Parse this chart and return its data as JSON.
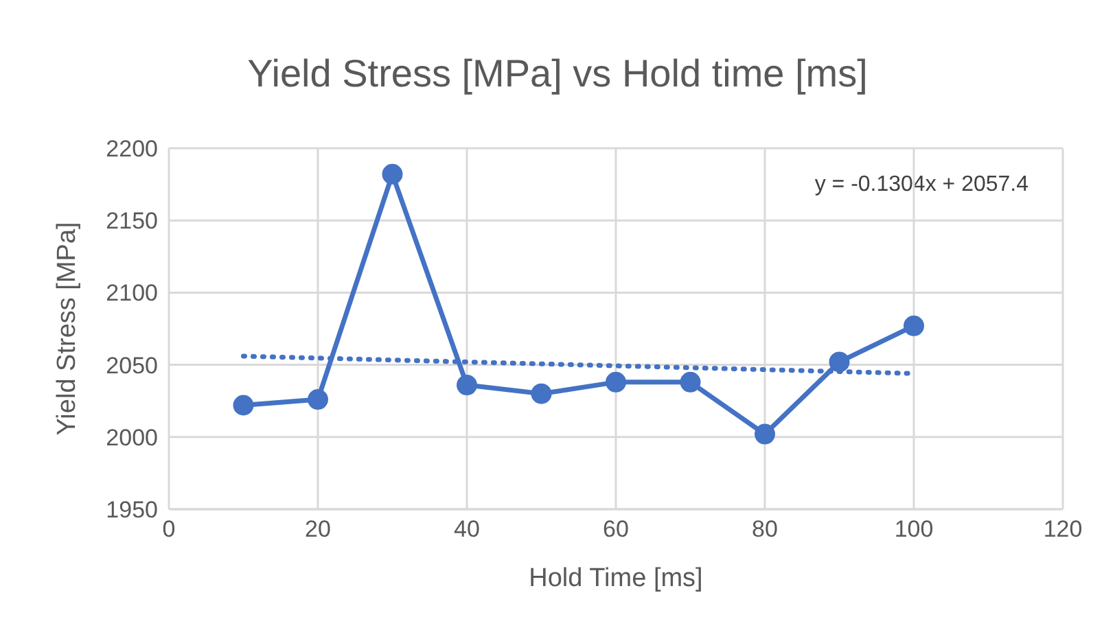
{
  "chart_data": {
    "type": "line",
    "title": "Yield Stress [MPa] vs Hold time [ms]",
    "xlabel": "Hold Time [ms]",
    "ylabel": "Yield Stress [MPa]",
    "x": [
      10,
      20,
      30,
      40,
      50,
      60,
      70,
      80,
      90,
      100
    ],
    "series": [
      {
        "color": "#4472c4",
        "values": [
          2022,
          2026,
          2182,
          2036,
          2030,
          2038,
          2038,
          2002,
          2052,
          2077
        ],
        "marker": "circle",
        "line_style": "solid"
      },
      {
        "type": "line",
        "color": "#4472c4",
        "x": [
          10,
          100
        ],
        "values": [
          2056,
          2044
        ],
        "marker": "none",
        "line_style": "dotted"
      }
    ],
    "annotations": [
      "y = -0.1304x + 2057.4"
    ],
    "xlim": [
      0,
      120
    ],
    "xticks": [
      0,
      20,
      40,
      60,
      80,
      100,
      120
    ],
    "ylim": [
      1950,
      2200
    ],
    "yticks": [
      1950,
      2000,
      2050,
      2100,
      2150,
      2200
    ],
    "grid": true,
    "legend": false
  }
}
